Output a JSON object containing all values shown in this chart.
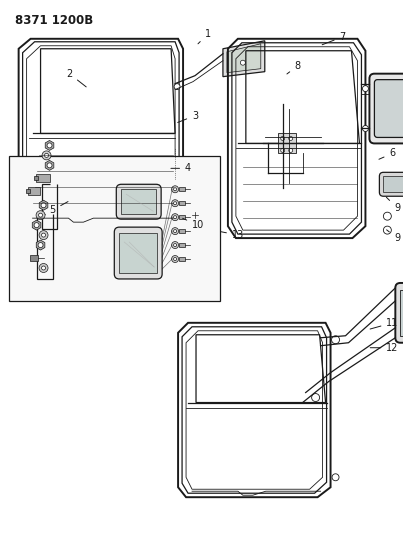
{
  "title": "8371 1200B",
  "bg_color": "#ffffff",
  "line_color": "#1a1a1a",
  "figsize": [
    4.04,
    5.33
  ],
  "dpi": 100,
  "label_fontsize": 7.0,
  "header_fontsize": 8.5
}
